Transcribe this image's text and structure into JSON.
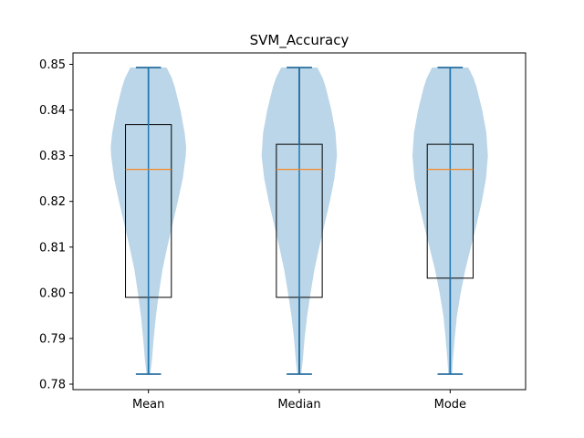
{
  "chart_data": {
    "type": "violin+box",
    "title": "SVM_Accuracy",
    "xlabel": "",
    "ylabel": "",
    "categories": [
      "Mean",
      "Median",
      "Mode"
    ],
    "ylim": [
      0.7788,
      0.8525
    ],
    "yticks": [
      0.78,
      0.79,
      0.8,
      0.81,
      0.82,
      0.83,
      0.84,
      0.85
    ],
    "ytick_labels": [
      "0.78",
      "0.79",
      "0.80",
      "0.81",
      "0.82",
      "0.83",
      "0.84",
      "0.85"
    ],
    "grid": false,
    "colors": {
      "violin_fill": "#1f77b4",
      "violin_alpha": 0.3,
      "violin_lines": "#1f77b4",
      "box_edge": "#000000",
      "median_line": "#ff7f0e"
    },
    "series": [
      {
        "category": "Mean",
        "min": 0.7822,
        "q1": 0.799,
        "median": 0.827,
        "q3": 0.8368,
        "max": 0.8493,
        "density": [
          [
            0.7822,
            0.05
          ],
          [
            0.785,
            0.09
          ],
          [
            0.79,
            0.14
          ],
          [
            0.795,
            0.2
          ],
          [
            0.8,
            0.28
          ],
          [
            0.805,
            0.37
          ],
          [
            0.81,
            0.5
          ],
          [
            0.815,
            0.64
          ],
          [
            0.82,
            0.78
          ],
          [
            0.825,
            0.91
          ],
          [
            0.83,
            0.99
          ],
          [
            0.832,
            1.0
          ],
          [
            0.835,
            0.96
          ],
          [
            0.84,
            0.85
          ],
          [
            0.845,
            0.7
          ],
          [
            0.847,
            0.62
          ],
          [
            0.8493,
            0.48
          ]
        ]
      },
      {
        "category": "Median",
        "min": 0.7822,
        "q1": 0.799,
        "median": 0.827,
        "q3": 0.8325,
        "max": 0.8493,
        "density": [
          [
            0.7822,
            0.05
          ],
          [
            0.785,
            0.09
          ],
          [
            0.79,
            0.14
          ],
          [
            0.795,
            0.21
          ],
          [
            0.8,
            0.3
          ],
          [
            0.805,
            0.4
          ],
          [
            0.81,
            0.53
          ],
          [
            0.815,
            0.67
          ],
          [
            0.82,
            0.81
          ],
          [
            0.825,
            0.93
          ],
          [
            0.83,
            1.0
          ],
          [
            0.835,
            0.96
          ],
          [
            0.84,
            0.85
          ],
          [
            0.845,
            0.7
          ],
          [
            0.847,
            0.62
          ],
          [
            0.8493,
            0.48
          ]
        ]
      },
      {
        "category": "Mode",
        "min": 0.7822,
        "q1": 0.8032,
        "median": 0.827,
        "q3": 0.8325,
        "max": 0.8493,
        "density": [
          [
            0.7822,
            0.05
          ],
          [
            0.785,
            0.07
          ],
          [
            0.79,
            0.12
          ],
          [
            0.795,
            0.18
          ],
          [
            0.8,
            0.28
          ],
          [
            0.805,
            0.4
          ],
          [
            0.81,
            0.55
          ],
          [
            0.815,
            0.7
          ],
          [
            0.82,
            0.84
          ],
          [
            0.825,
            0.95
          ],
          [
            0.83,
            1.0
          ],
          [
            0.835,
            0.96
          ],
          [
            0.84,
            0.85
          ],
          [
            0.845,
            0.7
          ],
          [
            0.847,
            0.62
          ],
          [
            0.8493,
            0.48
          ]
        ]
      }
    ]
  }
}
